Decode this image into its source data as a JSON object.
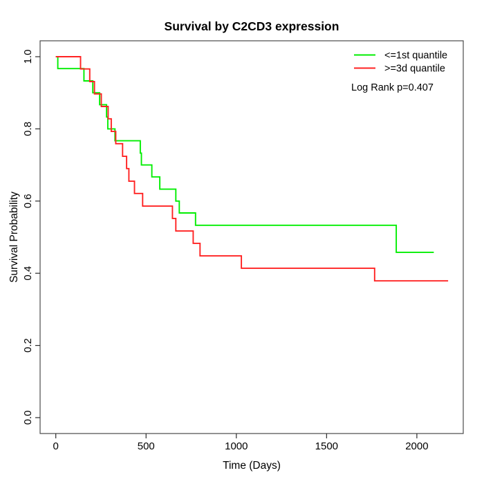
{
  "page": {
    "background": "#ffffff",
    "axis_color": "#4a4a4a",
    "tick_color": "#2a2a2a"
  },
  "chart_data": {
    "type": "line",
    "chart_style": "kaplan-meier-step",
    "title": "Survival by C2CD3 expression",
    "xlabel": "Time (Days)",
    "ylabel": "Survival Probability",
    "xlim": [
      0,
      2250
    ],
    "ylim": [
      0,
      1
    ],
    "x_ticks": [
      0,
      500,
      1000,
      1500,
      2000
    ],
    "y_ticks": [
      0.0,
      0.2,
      0.4,
      0.6,
      0.8,
      1.0
    ],
    "grid": false,
    "legend_position": "top-right-inside",
    "annotation": "Log Rank p=0.407",
    "series": [
      {
        "name": "<=1st quantile",
        "color": "#00ee00",
        "start": [
          0,
          1.0
        ],
        "steps": [
          [
            11,
            0.967
          ],
          [
            156,
            0.933
          ],
          [
            205,
            0.9
          ],
          [
            243,
            0.867
          ],
          [
            281,
            0.833
          ],
          [
            288,
            0.8
          ],
          [
            328,
            0.767
          ],
          [
            468,
            0.733
          ],
          [
            474,
            0.7
          ],
          [
            532,
            0.667
          ],
          [
            576,
            0.633
          ],
          [
            665,
            0.6
          ],
          [
            684,
            0.567
          ],
          [
            774,
            0.533
          ],
          [
            1886,
            0.458
          ]
        ],
        "end_time": 2094,
        "final_value": 0.458
      },
      {
        "name": ">=3d quantile",
        "color": "#ff2222",
        "start": [
          0,
          1.0
        ],
        "steps": [
          [
            137,
            0.966
          ],
          [
            188,
            0.931
          ],
          [
            214,
            0.897
          ],
          [
            252,
            0.862
          ],
          [
            290,
            0.828
          ],
          [
            307,
            0.793
          ],
          [
            332,
            0.759
          ],
          [
            370,
            0.724
          ],
          [
            392,
            0.69
          ],
          [
            405,
            0.655
          ],
          [
            436,
            0.621
          ],
          [
            481,
            0.586
          ],
          [
            646,
            0.552
          ],
          [
            665,
            0.517
          ],
          [
            761,
            0.483
          ],
          [
            799,
            0.448
          ],
          [
            1028,
            0.414
          ],
          [
            1766,
            0.379
          ]
        ],
        "end_time": 2173,
        "final_value": 0.379
      }
    ]
  }
}
